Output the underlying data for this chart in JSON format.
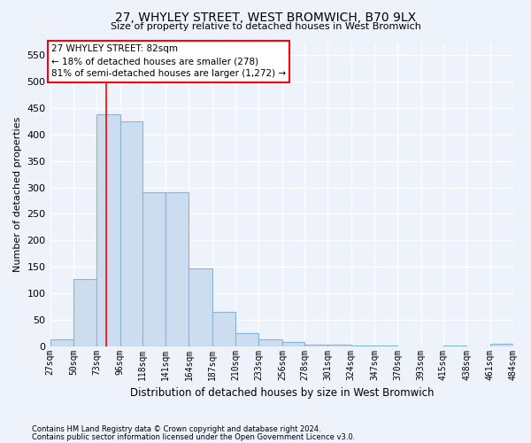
{
  "title": "27, WHYLEY STREET, WEST BROMWICH, B70 9LX",
  "subtitle": "Size of property relative to detached houses in West Bromwich",
  "xlabel": "Distribution of detached houses by size in West Bromwich",
  "ylabel": "Number of detached properties",
  "bar_color": "#ccddf0",
  "bar_edge_color": "#8ab4d4",
  "background_color": "#eef2fa",
  "grid_color": "#ffffff",
  "footnote1": "Contains HM Land Registry data © Crown copyright and database right 2024.",
  "footnote2": "Contains public sector information licensed under the Open Government Licence v3.0.",
  "annotation_line1": "27 WHYLEY STREET: 82sqm",
  "annotation_line2": "← 18% of detached houses are smaller (278)",
  "annotation_line3": "81% of semi-detached houses are larger (1,272) →",
  "property_size": 82,
  "bin_edges": [
    27,
    50,
    73,
    96,
    118,
    141,
    164,
    187,
    210,
    233,
    256,
    278,
    301,
    324,
    347,
    370,
    393,
    415,
    438,
    461,
    484
  ],
  "bar_heights": [
    12,
    127,
    438,
    425,
    291,
    291,
    147,
    65,
    25,
    12,
    8,
    3,
    2,
    1,
    1,
    0,
    0,
    1,
    0,
    5
  ],
  "ylim": [
    0,
    575
  ],
  "yticks": [
    0,
    50,
    100,
    150,
    200,
    250,
    300,
    350,
    400,
    450,
    500,
    550
  ]
}
